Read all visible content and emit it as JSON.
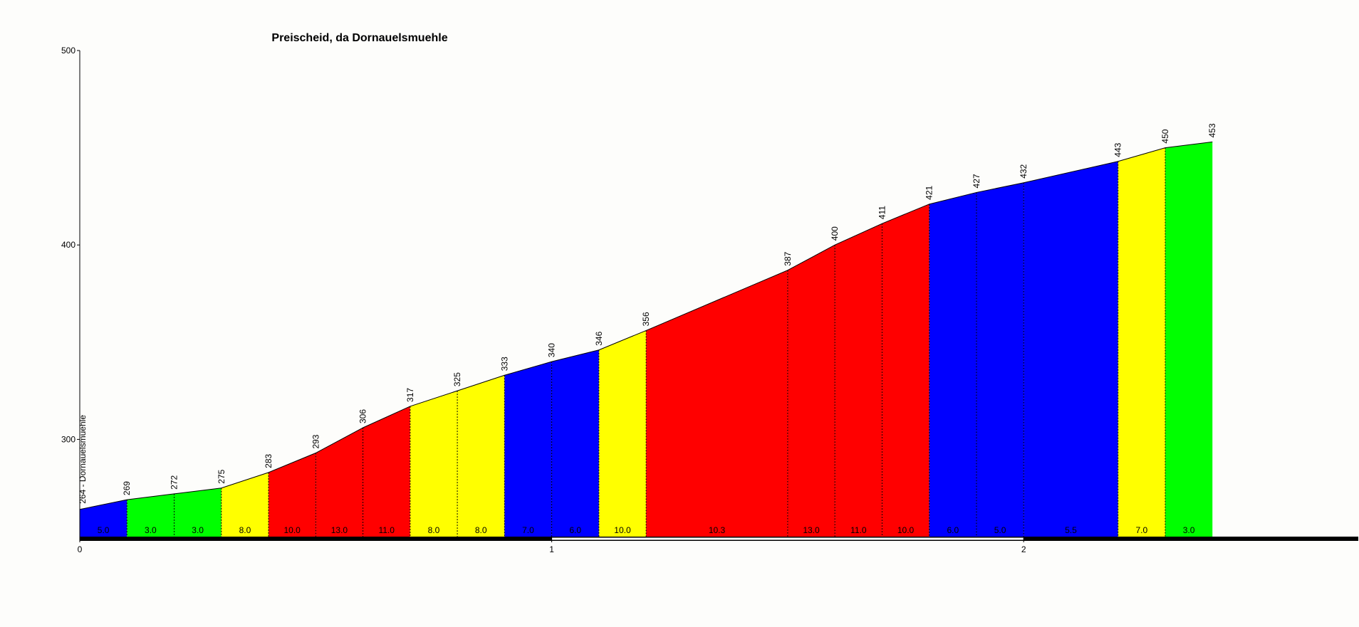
{
  "chart_data": {
    "type": "profile",
    "title": "Preischeid, da Dornauelsmuehle",
    "x": [
      0,
      0.1,
      0.2,
      0.3,
      0.4,
      0.5,
      0.6,
      0.7,
      0.8,
      0.9,
      1.0,
      1.1,
      1.2,
      1.5,
      1.6,
      1.7,
      1.8,
      1.9,
      2.0,
      2.2,
      2.3,
      2.4
    ],
    "values": [
      264,
      269,
      272,
      275,
      283,
      293,
      306,
      317,
      325,
      333,
      340,
      346,
      356,
      387,
      400,
      411,
      421,
      427,
      432,
      443,
      450,
      453
    ],
    "value_labels": [
      "264 - Dornauelsmuehle",
      "269",
      "272",
      "275",
      "283",
      "293",
      "306",
      "317",
      "325",
      "333",
      "340",
      "346",
      "356",
      "387",
      "400",
      "411",
      "421",
      "427",
      "432",
      "443",
      "450",
      "453"
    ],
    "grades": [
      {
        "value": 5,
        "label": "5.0"
      },
      {
        "value": 3,
        "label": "3.0"
      },
      {
        "value": 3,
        "label": "3.0"
      },
      {
        "value": 8,
        "label": "8.0"
      },
      {
        "value": 10,
        "label": "10.0"
      },
      {
        "value": 13,
        "label": "13.0"
      },
      {
        "value": 11,
        "label": "11.0"
      },
      {
        "value": 8,
        "label": "8.0"
      },
      {
        "value": 8,
        "label": "8.0"
      },
      {
        "value": 7,
        "label": "7.0"
      },
      {
        "value": 6,
        "label": "6.0"
      },
      {
        "value": 10,
        "label": "10.0"
      },
      {
        "value": 10.3,
        "label": "10.3"
      },
      {
        "value": 13,
        "label": "13.0"
      },
      {
        "value": 11,
        "label": "11.0"
      },
      {
        "value": 10,
        "label": "10.0"
      },
      {
        "value": 6,
        "label": "6.0"
      },
      {
        "value": 5,
        "label": "5.0"
      },
      {
        "value": 5.5,
        "label": "5.5"
      },
      {
        "value": 7,
        "label": "7.0"
      },
      {
        "value": 3,
        "label": "3.0"
      }
    ],
    "segment_colors": [
      "#0000ff",
      "#00ff00",
      "#00ff00",
      "#ffff00",
      "#ff0000",
      "#ff0000",
      "#ff0000",
      "#ffff00",
      "#ffff00",
      "#0000ff",
      "#0000ff",
      "#ffff00",
      "#ff0000",
      "#ff0000",
      "#ff0000",
      "#ff0000",
      "#0000ff",
      "#0000ff",
      "#0000ff",
      "#ffff00",
      "#00ff00"
    ],
    "xlim": [
      0,
      2.7
    ],
    "xticks": [
      0,
      1,
      2
    ],
    "ylim": [
      250,
      500
    ],
    "yticks": [
      300,
      400,
      500
    ]
  }
}
